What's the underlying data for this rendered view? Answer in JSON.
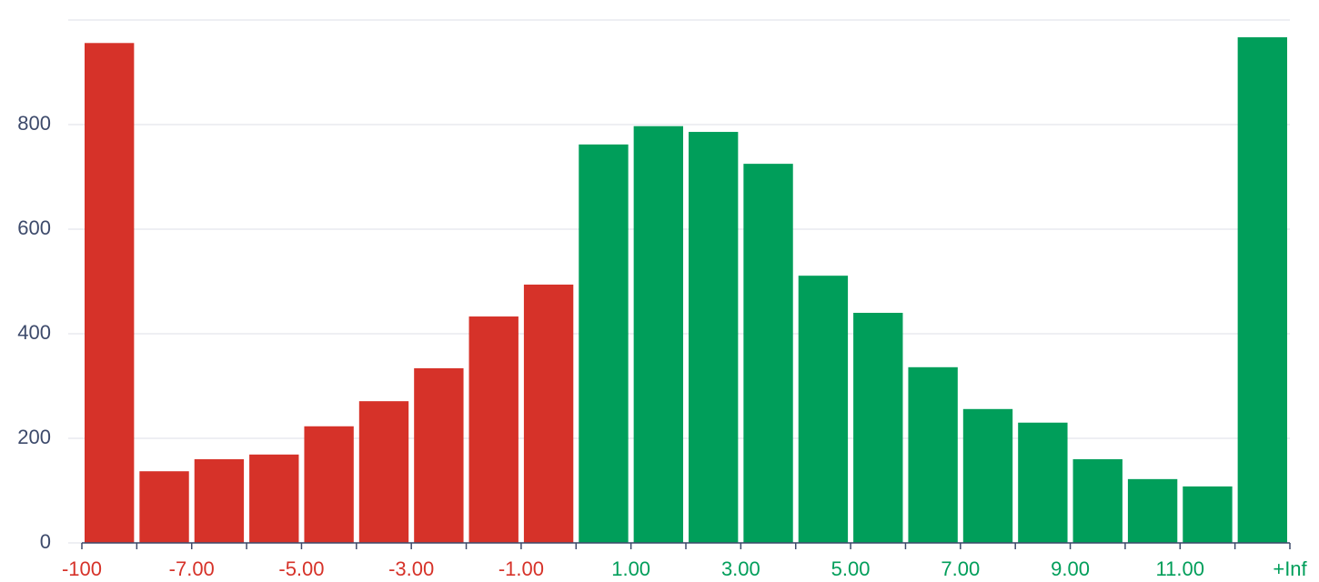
{
  "chart_data": {
    "type": "histogram",
    "bins": [
      "-100",
      null,
      "-7.00",
      null,
      "-5.00",
      null,
      "-3.00",
      null,
      "-1.00",
      null,
      "1.00",
      null,
      "3.00",
      null,
      "5.00",
      null,
      "7.00",
      null,
      "9.00",
      null,
      "11.00",
      null,
      "+Inf"
    ],
    "values": [
      956,
      137,
      160,
      169,
      223,
      271,
      334,
      433,
      494,
      762,
      797,
      786,
      725,
      511,
      440,
      336,
      256,
      230,
      160,
      122,
      108,
      967
    ],
    "colors": [
      "#d63229",
      "#d63229",
      "#d63229",
      "#d63229",
      "#d63229",
      "#d63229",
      "#d63229",
      "#d63229",
      "#d63229",
      "#009e5a",
      "#009e5a",
      "#009e5a",
      "#009e5a",
      "#009e5a",
      "#009e5a",
      "#009e5a",
      "#009e5a",
      "#009e5a",
      "#009e5a",
      "#009e5a",
      "#009e5a",
      "#009e5a"
    ],
    "ylim": [
      0,
      1000
    ],
    "yticks": [
      0,
      200,
      400,
      600,
      800
    ],
    "grid": true
  }
}
